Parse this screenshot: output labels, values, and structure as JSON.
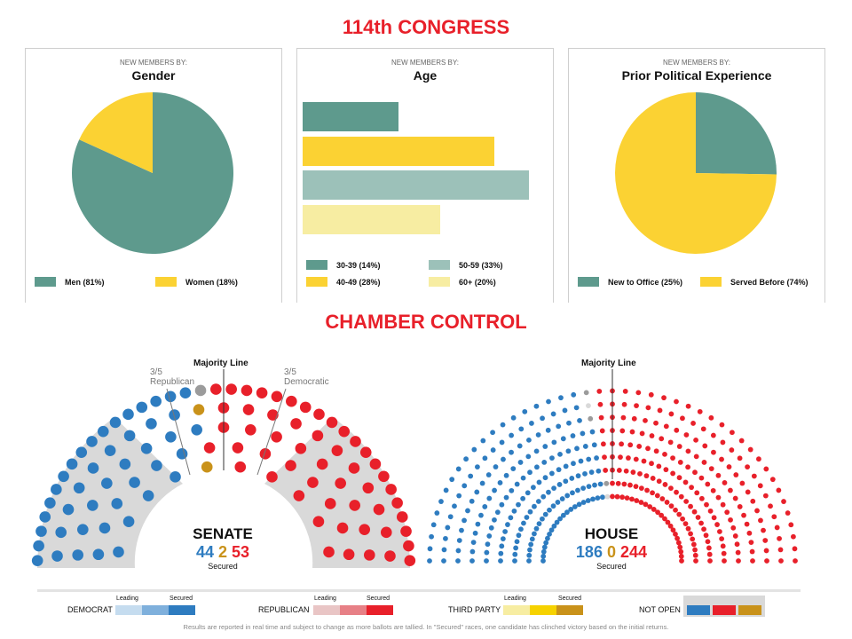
{
  "titles": {
    "top": "114th CONGRESS",
    "middle": "CHAMBER CONTROL"
  },
  "colors": {
    "teal": "#5e9a8d",
    "yellow": "#fbd233",
    "light_teal": "#9cc1b9",
    "light_yellow": "#f7eda2",
    "dem": "#2e7cc0",
    "rep": "#e8202a",
    "third": "#c9921a",
    "grey": "#d9d9d9",
    "undecided": "#9b9b9b"
  },
  "panels": [
    {
      "kicker": "NEW MEMBERS BY:",
      "title": "Gender"
    },
    {
      "kicker": "NEW MEMBERS BY:",
      "title": "Age"
    },
    {
      "kicker": "NEW MEMBERS BY:",
      "title": "Prior Political Experience"
    }
  ],
  "chart_data": [
    {
      "type": "pie",
      "title": "Gender",
      "labels": [
        "Men (81%)",
        "Women (18%)"
      ],
      "values": [
        81,
        18
      ],
      "colors": [
        "#5e9a8d",
        "#fbd233"
      ]
    },
    {
      "type": "bar",
      "title": "Age",
      "categories": [
        "30-39 (14%)",
        "40-49 (28%)",
        "50-59 (33%)",
        "60+ (20%)"
      ],
      "values": [
        14,
        28,
        33,
        20
      ],
      "colors": [
        "#5e9a8d",
        "#fbd233",
        "#9cc1b9",
        "#f7eda2"
      ],
      "orientation": "horizontal"
    },
    {
      "type": "pie",
      "title": "Prior Political Experience",
      "labels": [
        "New to Office (25%)",
        "Served Before (74%)"
      ],
      "values": [
        25,
        74
      ],
      "colors": [
        "#5e9a8d",
        "#fbd233"
      ]
    }
  ],
  "senate": {
    "name": "SENATE",
    "dem": "44",
    "other": "2",
    "rep": "53",
    "secured_label": "Secured",
    "majority_label": "Majority Line",
    "rep_fifth": [
      "3/5",
      "Republican"
    ],
    "dem_fifth": [
      "3/5",
      "Democratic"
    ]
  },
  "house": {
    "name": "HOUSE",
    "dem": "186",
    "other": "0",
    "rep": "244",
    "secured_label": "Secured",
    "majority_label": "Majority Line"
  },
  "legend": {
    "leading": "Leading",
    "secured": "Secured",
    "democrat": "DEMOCRAT",
    "republican": "REPUBLICAN",
    "third_party": "THIRD PARTY",
    "not_open": "NOT OPEN"
  },
  "note": "Results are reported in real time and subject to change as more ballots are tallied. In \"Secured\" races, one candidate has clinched victory based on the initial returns."
}
